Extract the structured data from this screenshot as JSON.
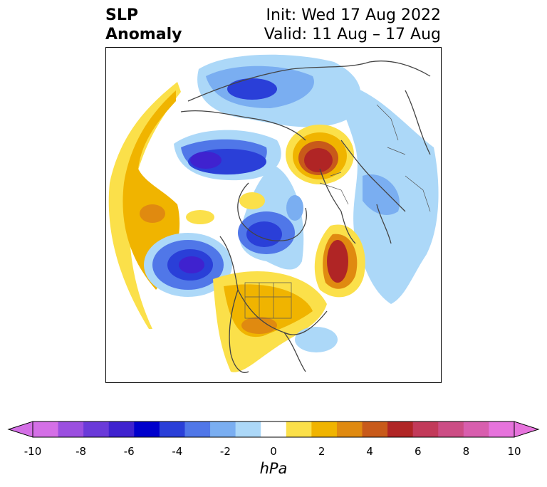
{
  "title": {
    "left_line1": "SLP",
    "left_line2": "Anomaly",
    "right_line1": "Init: Wed 17 Aug 2022",
    "right_line2": "Valid: 11 Aug – 17 Aug"
  },
  "map": {
    "projection": "north-polar-stereographic",
    "region": "Northern Hemisphere",
    "variable": "Sea level pressure anomaly"
  },
  "colorbar": {
    "unit": "hPa",
    "ticks": [
      "-10",
      "-8",
      "-6",
      "-4",
      "-2",
      "0",
      "2",
      "4",
      "6",
      "8",
      "10"
    ],
    "levels": [
      -10,
      -9,
      -8,
      -7,
      -6,
      -5,
      -4,
      -3,
      -2,
      -1,
      1,
      2,
      3,
      4,
      5,
      6,
      7,
      8,
      9,
      10
    ],
    "colors": [
      "#d46fe6",
      "#9b4fe0",
      "#6a3ad9",
      "#3f22cf",
      "#0000cc",
      "#2a3fd8",
      "#5077e8",
      "#7aaef1",
      "#acd8f8",
      "#ffffff",
      "#fbe04a",
      "#f0b400",
      "#e08a10",
      "#c85a1a",
      "#b02525",
      "#c23a5a",
      "#cc4d85",
      "#d85eae",
      "#e673dc"
    ],
    "under_color": "#d46fe6",
    "over_color": "#e673dc"
  }
}
